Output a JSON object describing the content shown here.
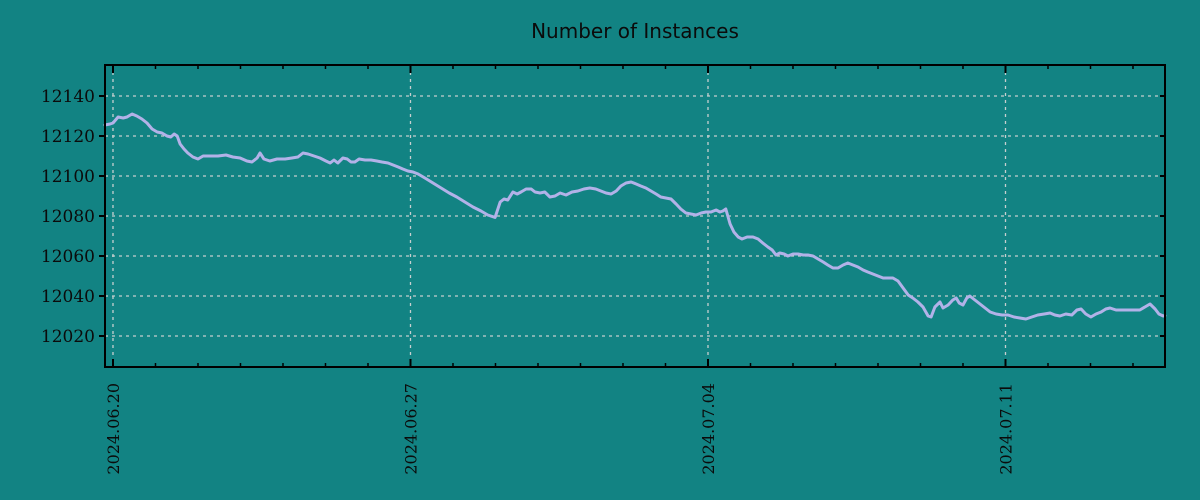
{
  "title": "Number of Instances",
  "colors": {
    "background": "#128383",
    "line": "#b2b2e8",
    "grid": "#c6cfcf",
    "axis": "#000000",
    "text": "#0b0b0b"
  },
  "chart_data": {
    "type": "line",
    "title": "Number of Instances",
    "xlabel": "",
    "ylabel": "",
    "legend": "none",
    "grid": "dashed both axes at major ticks",
    "x_axis": {
      "start_date": "2024.06.20",
      "tick_labels": [
        "2024.06.20",
        "2024.06.27",
        "2024.07.04",
        "2024.07.11"
      ],
      "tick_days": [
        0,
        7,
        14,
        21
      ],
      "minor_tick_interval_days": 1,
      "xlim_days": [
        -0.188,
        24.753
      ],
      "label_rotation_deg": -90
    },
    "y_axis": {
      "ticks": [
        12020,
        12040,
        12060,
        12080,
        12100,
        12120,
        12140
      ],
      "ylim": [
        12004.5,
        12155.5
      ]
    },
    "series": [
      {
        "name": "Number of Instances",
        "points": [
          [
            -0.19,
            12125.5
          ],
          [
            -0.07,
            12126
          ],
          [
            0,
            12126.5
          ],
          [
            0.12,
            12129.5
          ],
          [
            0.24,
            12129
          ],
          [
            0.33,
            12129.5
          ],
          [
            0.45,
            12131
          ],
          [
            0.56,
            12130
          ],
          [
            0.68,
            12128.5
          ],
          [
            0.8,
            12126.5
          ],
          [
            0.92,
            12123.5
          ],
          [
            1.04,
            12122
          ],
          [
            1.15,
            12121.5
          ],
          [
            1.27,
            12120
          ],
          [
            1.36,
            12119.5
          ],
          [
            1.44,
            12121
          ],
          [
            1.51,
            12120
          ],
          [
            1.58,
            12116
          ],
          [
            1.67,
            12113.5
          ],
          [
            1.76,
            12111.5
          ],
          [
            1.88,
            12109.5
          ],
          [
            2.0,
            12108.5
          ],
          [
            2.12,
            12110
          ],
          [
            2.28,
            12110
          ],
          [
            2.47,
            12110
          ],
          [
            2.66,
            12110.5
          ],
          [
            2.82,
            12109.5
          ],
          [
            2.99,
            12109
          ],
          [
            3.15,
            12107.5
          ],
          [
            3.27,
            12107
          ],
          [
            3.39,
            12109
          ],
          [
            3.46,
            12111.5
          ],
          [
            3.55,
            12108.5
          ],
          [
            3.69,
            12107.5
          ],
          [
            3.86,
            12108.5
          ],
          [
            4.05,
            12108.5
          ],
          [
            4.21,
            12109
          ],
          [
            4.35,
            12109.5
          ],
          [
            4.47,
            12111.5
          ],
          [
            4.59,
            12111
          ],
          [
            4.73,
            12110
          ],
          [
            4.87,
            12109
          ],
          [
            5.01,
            12107.5
          ],
          [
            5.11,
            12106.5
          ],
          [
            5.2,
            12108
          ],
          [
            5.29,
            12106.5
          ],
          [
            5.41,
            12109
          ],
          [
            5.51,
            12108.5
          ],
          [
            5.6,
            12107
          ],
          [
            5.69,
            12107
          ],
          [
            5.79,
            12108.5
          ],
          [
            5.93,
            12108
          ],
          [
            6.07,
            12108
          ],
          [
            6.21,
            12107.5
          ],
          [
            6.33,
            12107
          ],
          [
            6.47,
            12106.5
          ],
          [
            6.59,
            12105.5
          ],
          [
            6.71,
            12104.5
          ],
          [
            6.82,
            12103.5
          ],
          [
            6.94,
            12102.5
          ],
          [
            7.06,
            12102
          ],
          [
            7.18,
            12101
          ],
          [
            7.34,
            12099
          ],
          [
            7.53,
            12096.5
          ],
          [
            7.72,
            12094
          ],
          [
            7.91,
            12091.5
          ],
          [
            8.09,
            12089.5
          ],
          [
            8.28,
            12087
          ],
          [
            8.47,
            12084.5
          ],
          [
            8.66,
            12082.5
          ],
          [
            8.82,
            12080.5
          ],
          [
            8.99,
            12079.3
          ],
          [
            9.11,
            12087
          ],
          [
            9.2,
            12088.5
          ],
          [
            9.29,
            12088
          ],
          [
            9.41,
            12092
          ],
          [
            9.51,
            12091
          ],
          [
            9.6,
            12092
          ],
          [
            9.72,
            12093.5
          ],
          [
            9.84,
            12093.5
          ],
          [
            9.93,
            12092
          ],
          [
            10.05,
            12091.5
          ],
          [
            10.16,
            12092
          ],
          [
            10.28,
            12089.5
          ],
          [
            10.4,
            12090
          ],
          [
            10.52,
            12091.5
          ],
          [
            10.66,
            12090.5
          ],
          [
            10.8,
            12092
          ],
          [
            10.94,
            12092.5
          ],
          [
            11.08,
            12093.5
          ],
          [
            11.22,
            12094
          ],
          [
            11.36,
            12093.5
          ],
          [
            11.48,
            12092.5
          ],
          [
            11.6,
            12091.5
          ],
          [
            11.72,
            12091
          ],
          [
            11.84,
            12092.5
          ],
          [
            11.95,
            12095
          ],
          [
            12.07,
            12096.5
          ],
          [
            12.19,
            12097
          ],
          [
            12.31,
            12096
          ],
          [
            12.42,
            12095
          ],
          [
            12.54,
            12094
          ],
          [
            12.66,
            12092.5
          ],
          [
            12.78,
            12091
          ],
          [
            12.89,
            12089.5
          ],
          [
            13.01,
            12089
          ],
          [
            13.13,
            12088.5
          ],
          [
            13.25,
            12086
          ],
          [
            13.36,
            12083.5
          ],
          [
            13.48,
            12081.5
          ],
          [
            13.6,
            12081
          ],
          [
            13.72,
            12080.5
          ],
          [
            13.84,
            12081.5
          ],
          [
            13.95,
            12082
          ],
          [
            14.07,
            12082
          ],
          [
            14.19,
            12083
          ],
          [
            14.28,
            12082
          ],
          [
            14.35,
            12082.5
          ],
          [
            14.42,
            12083.5
          ],
          [
            14.52,
            12076
          ],
          [
            14.61,
            12072
          ],
          [
            14.71,
            12069.5
          ],
          [
            14.8,
            12068.5
          ],
          [
            14.92,
            12069.5
          ],
          [
            15.06,
            12069.5
          ],
          [
            15.18,
            12068.5
          ],
          [
            15.29,
            12066.5
          ],
          [
            15.41,
            12064.5
          ],
          [
            15.51,
            12063
          ],
          [
            15.6,
            12060.5
          ],
          [
            15.69,
            12061.5
          ],
          [
            15.79,
            12061
          ],
          [
            15.88,
            12060
          ],
          [
            16.0,
            12061
          ],
          [
            16.12,
            12061
          ],
          [
            16.24,
            12060.5
          ],
          [
            16.35,
            12060.5
          ],
          [
            16.47,
            12060
          ],
          [
            16.59,
            12058.5
          ],
          [
            16.71,
            12057
          ],
          [
            16.82,
            12055.5
          ],
          [
            16.94,
            12054
          ],
          [
            17.06,
            12054
          ],
          [
            17.18,
            12055.5
          ],
          [
            17.29,
            12056.5
          ],
          [
            17.41,
            12055.5
          ],
          [
            17.53,
            12054.5
          ],
          [
            17.65,
            12053
          ],
          [
            17.76,
            12052
          ],
          [
            17.88,
            12051
          ],
          [
            18.0,
            12050
          ],
          [
            18.12,
            12049
          ],
          [
            18.24,
            12049
          ],
          [
            18.35,
            12049
          ],
          [
            18.47,
            12047.5
          ],
          [
            18.59,
            12044
          ],
          [
            18.71,
            12040.5
          ],
          [
            18.82,
            12039
          ],
          [
            18.94,
            12037
          ],
          [
            19.06,
            12034.5
          ],
          [
            19.18,
            12030
          ],
          [
            19.25,
            12029.5
          ],
          [
            19.34,
            12034.5
          ],
          [
            19.46,
            12037
          ],
          [
            19.53,
            12034
          ],
          [
            19.65,
            12035.5
          ],
          [
            19.76,
            12038
          ],
          [
            19.84,
            12039
          ],
          [
            19.91,
            12036.5
          ],
          [
            20.0,
            12035.5
          ],
          [
            20.09,
            12039
          ],
          [
            20.16,
            12040
          ],
          [
            20.28,
            12038
          ],
          [
            20.4,
            12036
          ],
          [
            20.52,
            12034
          ],
          [
            20.64,
            12032
          ],
          [
            20.78,
            12031
          ],
          [
            20.92,
            12030.5
          ],
          [
            21.06,
            12030.5
          ],
          [
            21.2,
            12029.5
          ],
          [
            21.34,
            12029
          ],
          [
            21.48,
            12028.5
          ],
          [
            21.62,
            12029.5
          ],
          [
            21.76,
            12030.5
          ],
          [
            21.91,
            12031
          ],
          [
            22.05,
            12031.5
          ],
          [
            22.16,
            12030.5
          ],
          [
            22.28,
            12030
          ],
          [
            22.42,
            12031
          ],
          [
            22.56,
            12030.5
          ],
          [
            22.68,
            12033
          ],
          [
            22.78,
            12033.5
          ],
          [
            22.89,
            12031
          ],
          [
            23.01,
            12029.5
          ],
          [
            23.13,
            12031
          ],
          [
            23.25,
            12032
          ],
          [
            23.36,
            12033.5
          ],
          [
            23.46,
            12034
          ],
          [
            23.6,
            12033
          ],
          [
            23.74,
            12033
          ],
          [
            23.88,
            12033
          ],
          [
            24.02,
            12033
          ],
          [
            24.16,
            12033
          ],
          [
            24.28,
            12034.5
          ],
          [
            24.4,
            12036
          ],
          [
            24.52,
            12033.5
          ],
          [
            24.61,
            12031
          ],
          [
            24.71,
            12030
          ],
          [
            24.75,
            12030.2
          ]
        ]
      }
    ]
  }
}
